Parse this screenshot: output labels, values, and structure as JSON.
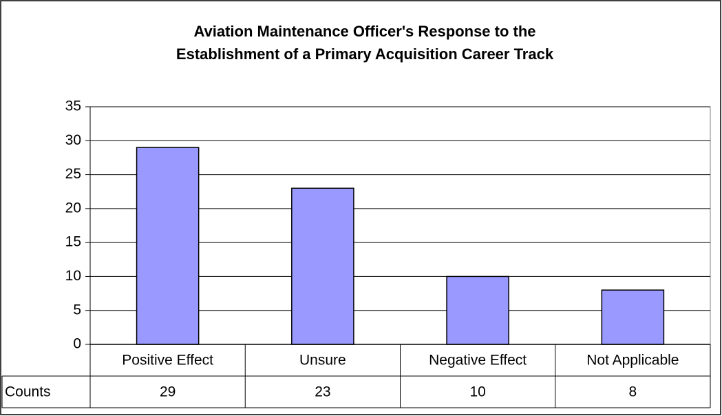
{
  "chart_data": {
    "type": "bar",
    "title": [
      "Aviation Maintenance Officer's Response to the",
      "Establishment of a Primary Acquisition Career Track"
    ],
    "categories": [
      "Positive Effect",
      "Unsure",
      "Negative Effect",
      "Not Applicable"
    ],
    "series_name": "Counts",
    "values": [
      29,
      23,
      10,
      8
    ],
    "color": "#9999ff",
    "ylim": [
      0,
      35
    ],
    "yticks": [
      0,
      5,
      10,
      15,
      20,
      25,
      30,
      35
    ],
    "grid": true
  }
}
